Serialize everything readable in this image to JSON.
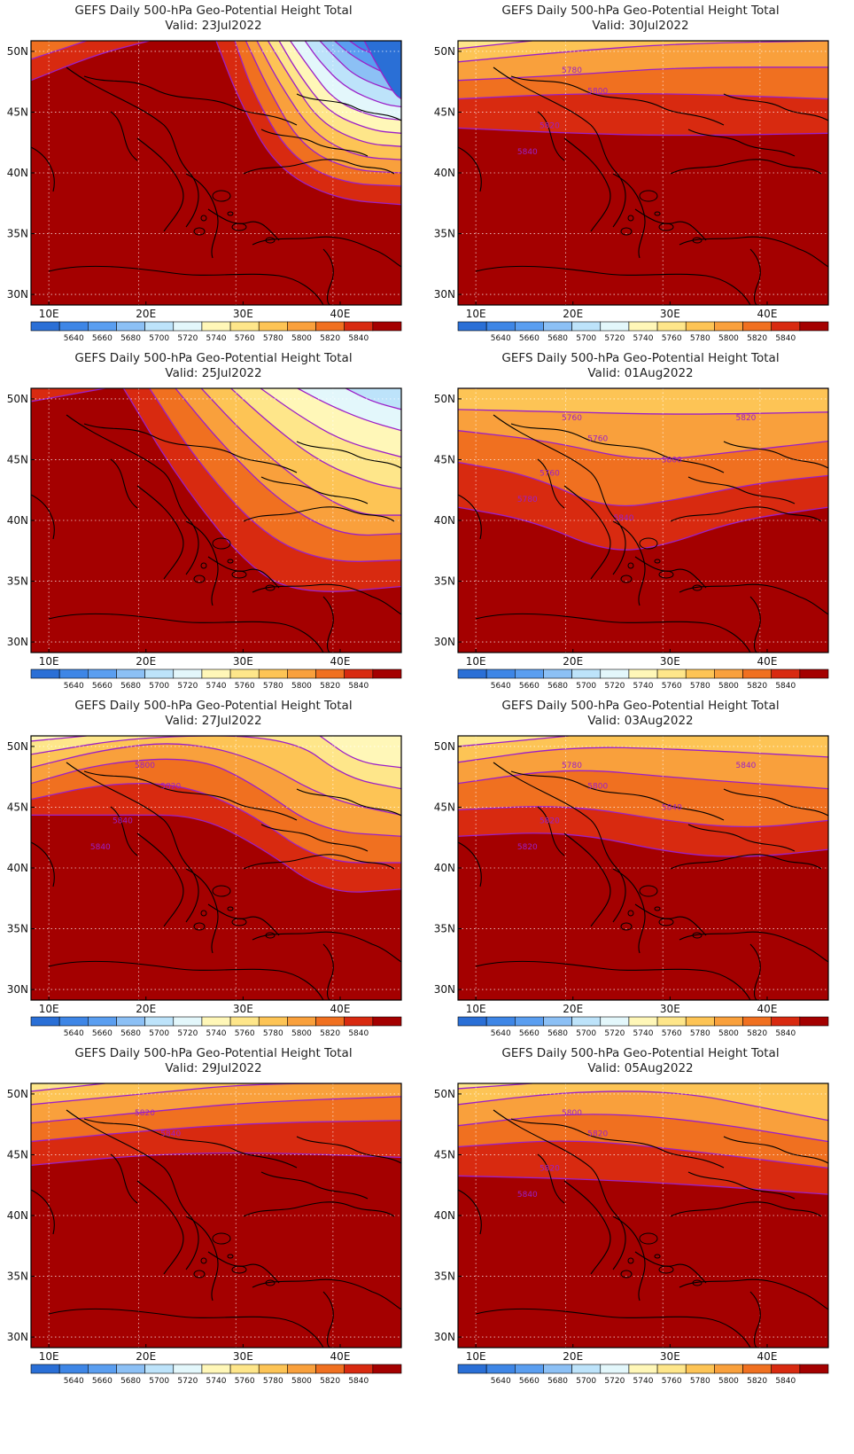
{
  "panels": [
    {
      "id": "p1",
      "title": "GEFS Daily 500-hPa Geo-Potential Height Total",
      "valid": "Valid: 23Jul2022",
      "col": 0,
      "row": 0,
      "labels": []
    },
    {
      "id": "p2",
      "title": "GEFS Daily 500-hPa Geo-Potential Height Total",
      "valid": "Valid: 30Jul2022",
      "col": 1,
      "row": 0,
      "labels": [
        "5780",
        "5800",
        "5820",
        "5840"
      ]
    },
    {
      "id": "p3",
      "title": "GEFS Daily 500-hPa Geo-Potential Height Total",
      "valid": "Valid: 25Jul2022",
      "col": 0,
      "row": 1,
      "labels": []
    },
    {
      "id": "p4",
      "title": "GEFS Daily 500-hPa Geo-Potential Height Total",
      "valid": "Valid: 01Aug2022",
      "col": 1,
      "row": 1,
      "labels": [
        "5760",
        "5760",
        "5760",
        "5780",
        "5800",
        "5820",
        "5840"
      ]
    },
    {
      "id": "p5",
      "title": "GEFS Daily 500-hPa Geo-Potential Height Total",
      "valid": "Valid: 27Jul2022",
      "col": 0,
      "row": 2,
      "labels": [
        "5800",
        "5820",
        "5840",
        "5840"
      ]
    },
    {
      "id": "p6",
      "title": "GEFS Daily 500-hPa Geo-Potential Height Total",
      "valid": "Valid: 03Aug2022",
      "col": 1,
      "row": 2,
      "labels": [
        "5780",
        "5800",
        "5820",
        "5820",
        "5840",
        "5840"
      ]
    },
    {
      "id": "p7",
      "title": "GEFS Daily 500-hPa Geo-Potential Height Total",
      "valid": "Valid: 29Jul2022",
      "col": 0,
      "row": 3,
      "labels": [
        "5820",
        "5840"
      ]
    },
    {
      "id": "p8",
      "title": "GEFS Daily 500-hPa Geo-Potential Height Total",
      "valid": "Valid: 05Aug2022",
      "col": 1,
      "row": 3,
      "labels": [
        "5800",
        "5820",
        "5820",
        "5840"
      ]
    }
  ],
  "axes": {
    "lon_ticks": [
      "10E",
      "20E",
      "30E",
      "40E"
    ],
    "lat_ticks": [
      "50N",
      "45N",
      "40N",
      "35N",
      "30N"
    ]
  },
  "colorbar": {
    "labels": [
      "5640",
      "5660",
      "5680",
      "5700",
      "5720",
      "5740",
      "5760",
      "5780",
      "5800",
      "5820",
      "5840"
    ],
    "colors": [
      "#2a6fd6",
      "#3e86e6",
      "#5a9ef0",
      "#8cc0f5",
      "#bde3fa",
      "#e3f7fb",
      "#fff7b8",
      "#fee68a",
      "#fdc455",
      "#f9a03c",
      "#f07020",
      "#d82a10",
      "#a40000"
    ]
  },
  "colors": {
    "contour": "#9b1fc8",
    "coast": "#000000",
    "grid": "#cccccc"
  }
}
